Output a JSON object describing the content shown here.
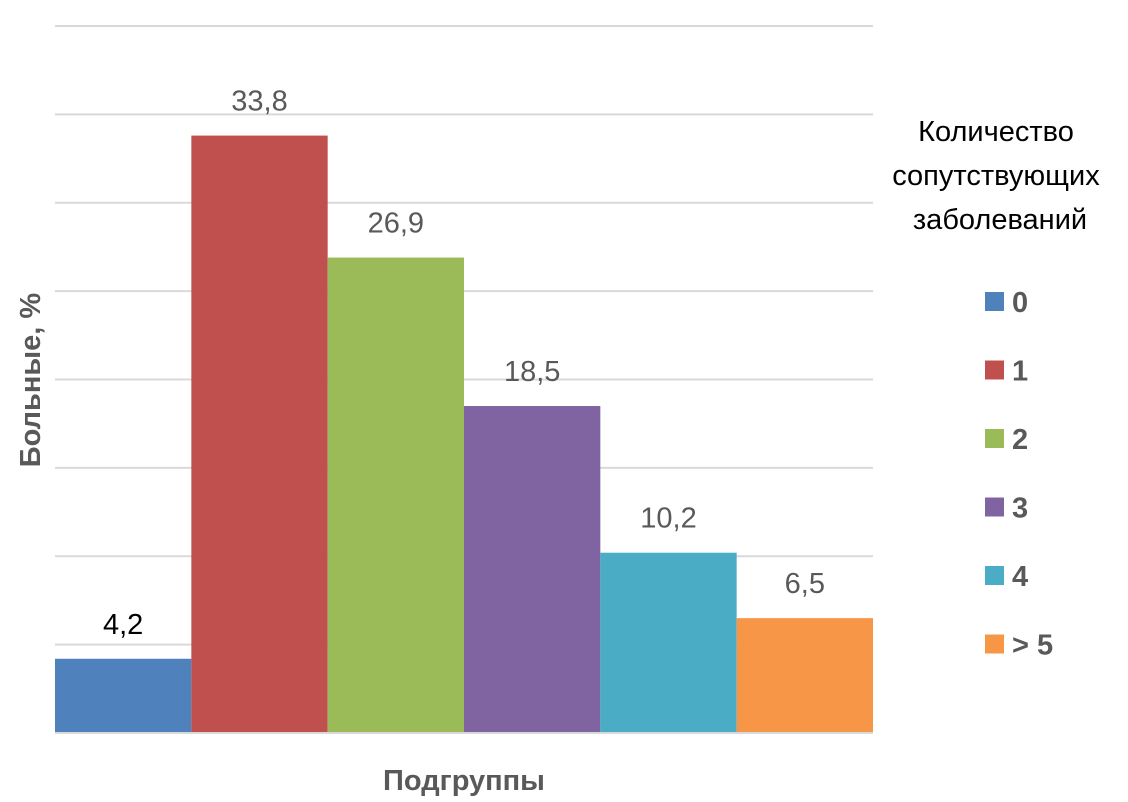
{
  "chart_data": {
    "type": "bar",
    "ylabel": "Больные, %",
    "xlabel": "Подгруппы",
    "ylim": [
      0,
      40
    ],
    "grid": true,
    "legend_position": "right",
    "legend_title": [
      "Количество",
      "сопутствующих",
      "заболеваний"
    ],
    "series": [
      {
        "name": "0",
        "value": 4.2,
        "label": "4,2",
        "color": "#4F81BD"
      },
      {
        "name": "1",
        "value": 33.8,
        "label": "33,8",
        "color": "#C0504D"
      },
      {
        "name": "2",
        "value": 26.9,
        "label": "26,9",
        "color": "#9BBB59"
      },
      {
        "name": "3",
        "value": 18.5,
        "label": "18,5",
        "color": "#8064A2"
      },
      {
        "name": "4",
        "value": 10.2,
        "label": "10,2",
        "color": "#4BACC6"
      },
      {
        "name": "> 5",
        "value": 6.5,
        "label": "6,5",
        "color": "#F79646"
      }
    ]
  }
}
